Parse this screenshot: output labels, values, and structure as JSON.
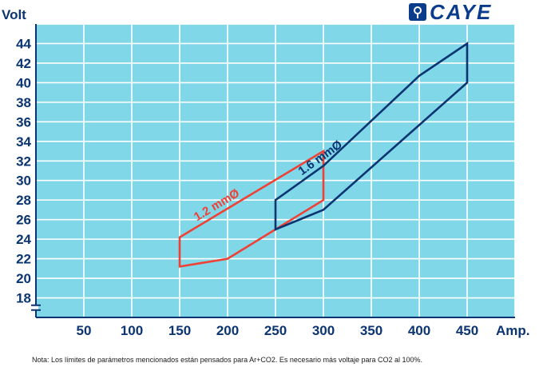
{
  "brand": {
    "name": "CAYE",
    "icon": "caye-logo-icon",
    "color": "#0b3c8c"
  },
  "note": "Nota: Los límites de parámetros mencionados están pensados para Ar+CO2. Es necesario más voltaje para CO2 al 100%.",
  "chart_data": {
    "type": "area",
    "title": "",
    "xlabel": "Amp.",
    "ylabel": "Volt",
    "xlim": [
      0,
      500
    ],
    "ylim": [
      16,
      46
    ],
    "x_ticks": [
      50,
      100,
      150,
      200,
      250,
      300,
      350,
      400,
      450
    ],
    "y_ticks": [
      18,
      20,
      22,
      24,
      26,
      28,
      30,
      32,
      34,
      36,
      38,
      40,
      42,
      44
    ],
    "grid": true,
    "background_color": "#7fd7e8",
    "axis_break": "y",
    "series": [
      {
        "name": "1.2 mmØ",
        "color": "#ef4136",
        "points": [
          [
            150,
            24.2
          ],
          [
            300,
            33
          ],
          [
            300,
            28
          ],
          [
            250,
            25
          ],
          [
            200,
            22
          ],
          [
            150,
            21.2
          ]
        ]
      },
      {
        "name": "1.6 mmØ",
        "color": "#0b3572",
        "points": [
          [
            250,
            28
          ],
          [
            300,
            31.5
          ],
          [
            400,
            40.7
          ],
          [
            450,
            44
          ],
          [
            450,
            40
          ],
          [
            300,
            27
          ],
          [
            250,
            25
          ]
        ]
      }
    ]
  }
}
